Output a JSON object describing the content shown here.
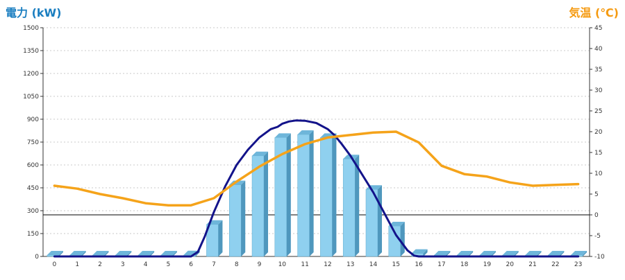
{
  "chart_data": {
    "type": "bar",
    "left_axis_label": "電力 (kW)",
    "right_axis_label": "気温 (℃)",
    "categories": [
      "0",
      "1",
      "2",
      "3",
      "4",
      "5",
      "6",
      "7",
      "8",
      "9",
      "10",
      "11",
      "12",
      "13",
      "14",
      "15",
      "16",
      "17",
      "18",
      "19",
      "20",
      "21",
      "22",
      "23"
    ],
    "ylim_left": [
      0,
      1500
    ],
    "ylim_right": [
      -10,
      45
    ],
    "left_ticks": [
      "0",
      "150",
      "300",
      "450",
      "600",
      "750",
      "900",
      "1050",
      "1200",
      "1350",
      "1500"
    ],
    "right_ticks": [
      "-10",
      "-5",
      "0",
      "5",
      "10",
      "15",
      "20",
      "25",
      "30",
      "35",
      "40",
      "45"
    ],
    "grid": true,
    "reference_line_right": 0,
    "series": [
      {
        "type": "bar",
        "axis": "left",
        "values": [
          0,
          0,
          0,
          0,
          0,
          0,
          10,
          210,
          470,
          660,
          780,
          800,
          780,
          640,
          440,
          200,
          20,
          0,
          0,
          0,
          0,
          0,
          0,
          0
        ]
      },
      {
        "type": "line",
        "axis": "left",
        "x": [
          0,
          1,
          2,
          3,
          4,
          5,
          6,
          6.3,
          6.6,
          7,
          7.5,
          8,
          8.5,
          9,
          9.5,
          9.8,
          10,
          10.3,
          10.6,
          11,
          11.5,
          12,
          12.3,
          12.6,
          13,
          13.5,
          14,
          14.5,
          15,
          15.5,
          15.8,
          16,
          17,
          18,
          19,
          20,
          21,
          22,
          23
        ],
        "values": [
          0,
          0,
          0,
          0,
          0,
          0,
          0,
          30,
          130,
          290,
          460,
          600,
          700,
          780,
          835,
          850,
          870,
          885,
          892,
          890,
          875,
          835,
          795,
          740,
          660,
          540,
          420,
          280,
          140,
          40,
          5,
          0,
          0,
          0,
          0,
          0,
          0,
          0,
          0
        ]
      },
      {
        "type": "line",
        "axis": "right",
        "x": [
          0,
          1,
          2,
          3,
          4,
          5,
          6,
          7,
          8,
          9,
          10,
          11,
          12,
          13,
          14,
          15,
          16,
          17,
          18,
          19,
          20,
          21,
          22,
          23
        ],
        "values": [
          7,
          6.3,
          5,
          4,
          2.8,
          2.3,
          2.3,
          4,
          8,
          11.6,
          14.6,
          17,
          18.6,
          19.2,
          19.8,
          20,
          17.4,
          11.8,
          9.8,
          9.2,
          7.8,
          7,
          7.2,
          7.4
        ]
      }
    ]
  }
}
